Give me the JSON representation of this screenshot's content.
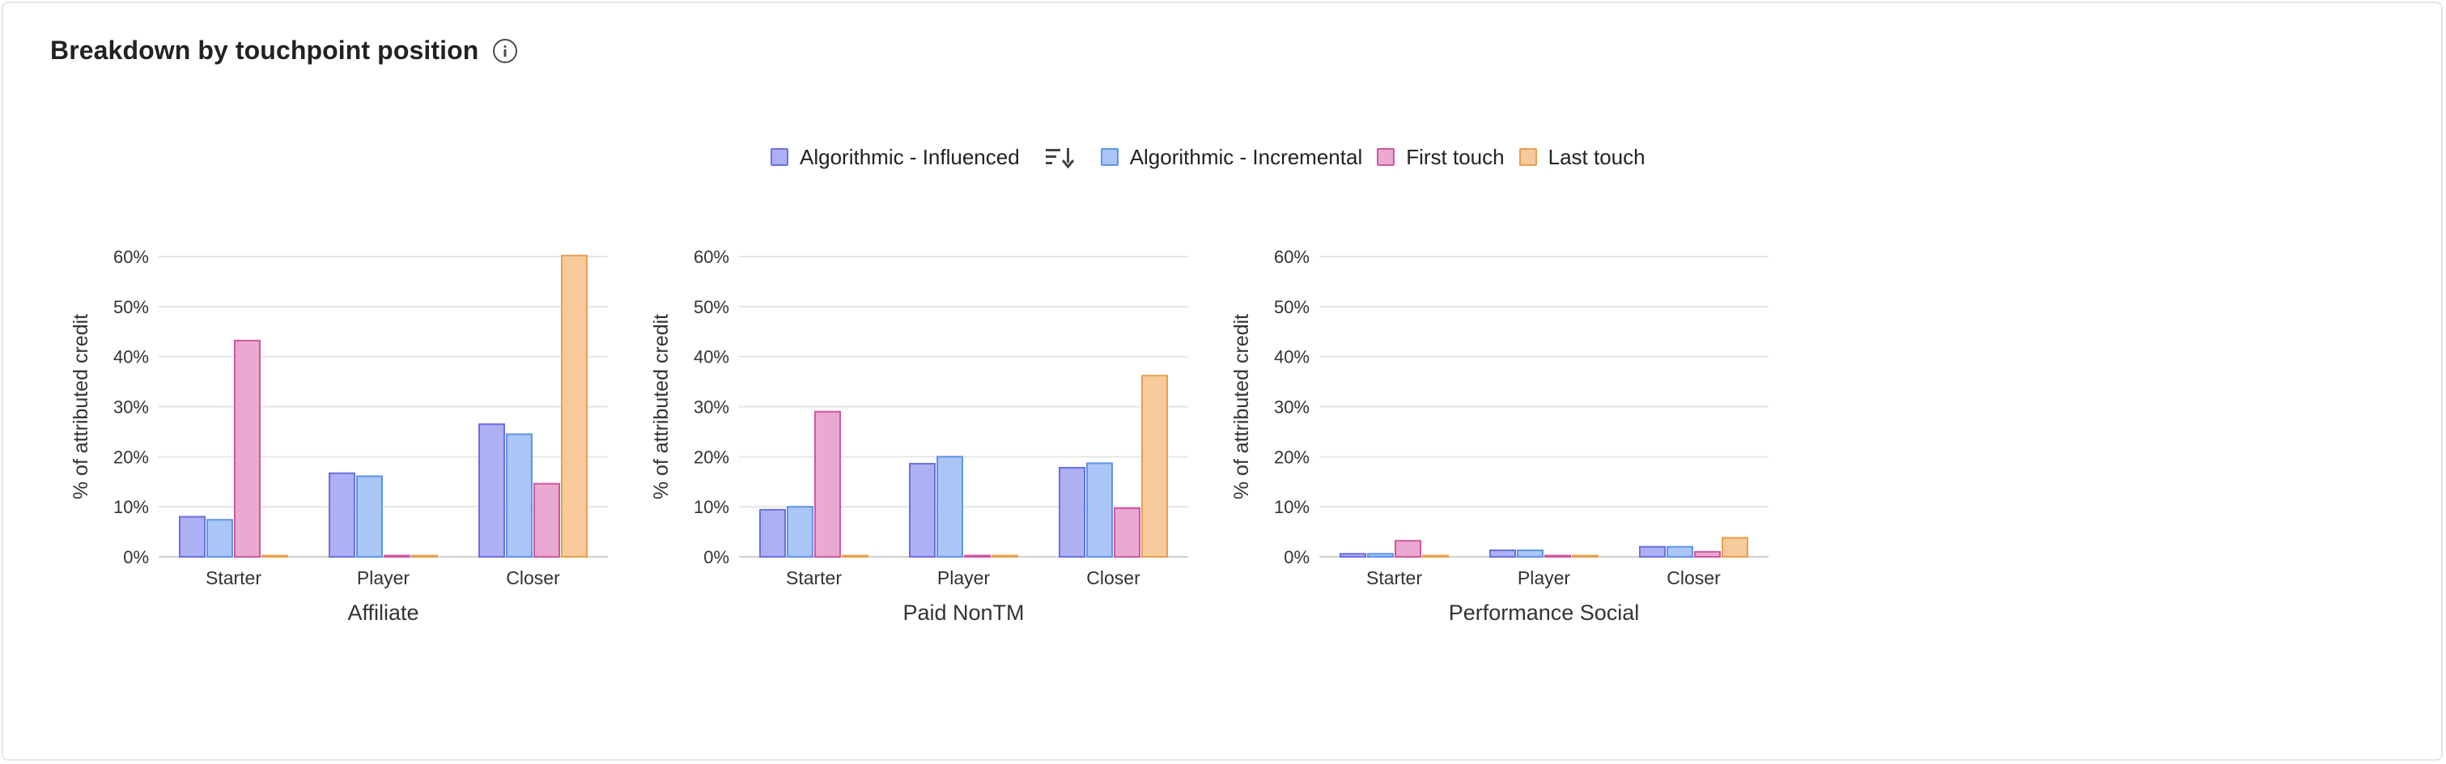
{
  "header": {
    "title": "Breakdown by touchpoint position"
  },
  "icons": {
    "info": "info-icon",
    "sort": "sort-icon"
  },
  "legend": {
    "items": [
      {
        "label": "Algorithmic - Influenced",
        "fill": "#adb0f3",
        "stroke": "#6b6fe0"
      },
      {
        "label": "Algorithmic - Incremental",
        "fill": "#a9c6f6",
        "stroke": "#5f93e8"
      },
      {
        "label": "First touch",
        "fill": "#eaa9d1",
        "stroke": "#d0579e"
      },
      {
        "label": "Last touch",
        "fill": "#f6ca9b",
        "stroke": "#e7a04f"
      }
    ]
  },
  "chart_data": [
    {
      "type": "bar",
      "xlabel": "Affiliate",
      "ylabel": "% of attributed credit",
      "categories": [
        "Starter",
        "Player",
        "Closer"
      ],
      "ylim": [
        0,
        60
      ],
      "yticks": [
        "0%",
        "10%",
        "20%",
        "30%",
        "40%",
        "50%",
        "60%"
      ],
      "grid": true,
      "series": [
        {
          "name": "Algorithmic - Influenced",
          "values": [
            8,
            16.7,
            26.5
          ]
        },
        {
          "name": "Algorithmic - Incremental",
          "values": [
            7.4,
            16.1,
            24.5
          ]
        },
        {
          "name": "First touch",
          "values": [
            43.2,
            0.2,
            14.6
          ]
        },
        {
          "name": "Last touch",
          "values": [
            0.2,
            0.2,
            60.2
          ]
        }
      ]
    },
    {
      "type": "bar",
      "xlabel": "Paid NonTM",
      "ylabel": "% of attributed credit",
      "categories": [
        "Starter",
        "Player",
        "Closer"
      ],
      "ylim": [
        0,
        60
      ],
      "yticks": [
        "0%",
        "10%",
        "20%",
        "30%",
        "40%",
        "50%",
        "60%"
      ],
      "grid": true,
      "series": [
        {
          "name": "Algorithmic - Influenced",
          "values": [
            9.4,
            18.6,
            17.8
          ]
        },
        {
          "name": "Algorithmic - Incremental",
          "values": [
            10,
            20,
            18.7
          ]
        },
        {
          "name": "First touch",
          "values": [
            29,
            0.2,
            9.7
          ]
        },
        {
          "name": "Last touch",
          "values": [
            0.2,
            0.2,
            36.2
          ]
        }
      ]
    },
    {
      "type": "bar",
      "xlabel": "Performance Social",
      "ylabel": "% of attributed credit",
      "categories": [
        "Starter",
        "Player",
        "Closer"
      ],
      "ylim": [
        0,
        60
      ],
      "yticks": [
        "0%",
        "10%",
        "20%",
        "30%",
        "40%",
        "50%",
        "60%"
      ],
      "grid": true,
      "series": [
        {
          "name": "Algorithmic - Influenced",
          "values": [
            0.6,
            1.3,
            2
          ]
        },
        {
          "name": "Algorithmic - Incremental",
          "values": [
            0.6,
            1.3,
            2
          ]
        },
        {
          "name": "First touch",
          "values": [
            3.2,
            0.2,
            1
          ]
        },
        {
          "name": "Last touch",
          "values": [
            0.2,
            0.2,
            3.8
          ]
        }
      ]
    }
  ]
}
